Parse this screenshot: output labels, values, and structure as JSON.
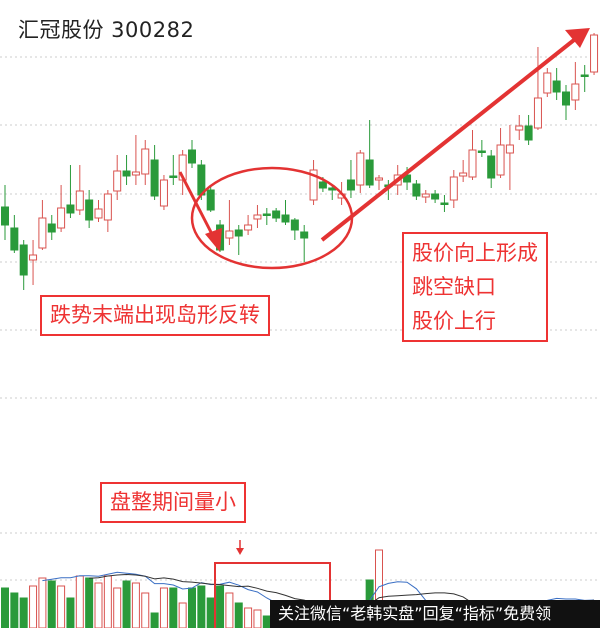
{
  "header": {
    "title": "汇冠股份 300282"
  },
  "annotations": {
    "island_reversal": "跌势末端出现岛形反转",
    "gap_up": [
      "股价向上形成",
      "跳空缺口",
      "股价上行"
    ],
    "low_volume": "盘整期间量小"
  },
  "watermark": "关注微信“老韩实盘”回复“指标”免费领",
  "colors": {
    "up": "#d9534f",
    "down": "#2a9a3a",
    "annotation": "#e33333",
    "grid": "#cccccc"
  },
  "chart_data": {
    "type": "candlestick",
    "title": "汇冠股份 300282",
    "grid": true,
    "price_fields": [
      "open",
      "close",
      "high",
      "low"
    ],
    "ylim": [
      120,
      400
    ],
    "candles": [
      [
        213,
        195,
        235,
        180
      ],
      [
        192,
        170,
        205,
        167
      ],
      [
        175,
        145,
        180,
        130
      ],
      [
        160,
        165,
        180,
        135
      ],
      [
        172,
        202,
        220,
        170
      ],
      [
        196,
        188,
        205,
        180
      ],
      [
        192,
        212,
        235,
        188
      ],
      [
        215,
        207,
        255,
        202
      ],
      [
        210,
        229,
        255,
        205
      ],
      [
        220,
        200,
        230,
        192
      ],
      [
        202,
        211,
        220,
        198
      ],
      [
        200,
        226,
        230,
        188
      ],
      [
        229,
        249,
        265,
        220
      ],
      [
        249,
        244,
        265,
        235
      ],
      [
        245,
        248,
        285,
        235
      ],
      [
        246,
        271,
        280,
        235
      ],
      [
        260,
        224,
        275,
        220
      ],
      [
        214,
        240,
        245,
        210
      ],
      [
        244,
        243,
        265,
        235
      ],
      [
        240,
        265,
        270,
        225
      ],
      [
        270,
        257,
        280,
        252
      ],
      [
        255,
        225,
        260,
        220
      ],
      [
        230,
        210,
        235,
        208
      ],
      [
        195,
        170,
        200,
        168
      ],
      [
        182,
        189,
        220,
        175
      ],
      [
        190,
        184,
        195,
        165
      ],
      [
        190,
        195,
        205,
        185
      ],
      [
        201,
        205,
        215,
        192
      ],
      [
        206,
        205,
        212,
        195
      ],
      [
        209,
        202,
        212,
        198
      ],
      [
        205,
        198,
        220,
        195
      ],
      [
        200,
        190,
        202,
        180
      ],
      [
        188,
        182,
        195,
        158
      ],
      [
        220,
        250,
        260,
        215
      ],
      [
        238,
        232,
        243,
        228
      ],
      [
        232,
        230,
        235,
        220
      ],
      [
        222,
        226,
        238,
        215
      ],
      [
        240,
        230,
        260,
        222
      ],
      [
        235,
        267,
        270,
        227
      ],
      [
        260,
        235,
        300,
        232
      ],
      [
        240,
        242,
        245,
        230
      ],
      [
        235,
        234,
        240,
        220
      ],
      [
        235,
        245,
        255,
        225
      ],
      [
        245,
        238,
        253,
        230
      ],
      [
        236,
        224,
        240,
        220
      ],
      [
        223,
        226,
        230,
        217
      ],
      [
        226,
        221,
        230,
        217
      ],
      [
        217,
        216,
        225,
        208
      ],
      [
        220,
        243,
        250,
        212
      ],
      [
        244,
        247,
        260,
        238
      ],
      [
        243,
        270,
        290,
        240
      ],
      [
        269,
        268,
        280,
        263
      ],
      [
        264,
        242,
        270,
        232
      ],
      [
        245,
        275,
        292,
        242
      ],
      [
        267,
        275,
        295,
        230
      ],
      [
        290,
        294,
        305,
        280
      ],
      [
        294,
        280,
        305,
        275
      ],
      [
        292,
        322,
        373,
        290
      ],
      [
        327,
        347,
        352,
        323
      ],
      [
        339,
        328,
        352,
        320
      ],
      [
        328,
        315,
        335,
        300
      ],
      [
        320,
        336,
        358,
        310
      ],
      [
        345,
        344,
        355,
        328
      ],
      [
        348,
        385,
        387,
        345
      ]
    ],
    "volume": [
      40,
      35,
      30,
      42,
      50,
      47,
      42,
      30,
      52,
      50,
      45,
      52,
      40,
      47,
      45,
      35,
      15,
      40,
      40,
      25,
      40,
      42,
      30,
      42,
      35,
      25,
      20,
      18,
      12,
      10,
      12,
      10,
      15,
      12,
      10,
      10,
      8,
      12,
      20,
      48,
      78,
      25,
      20,
      18,
      15,
      20,
      15,
      12,
      10,
      18,
      15,
      12,
      10,
      12,
      15,
      18,
      20,
      25,
      20,
      25,
      15,
      20,
      18,
      22
    ]
  }
}
